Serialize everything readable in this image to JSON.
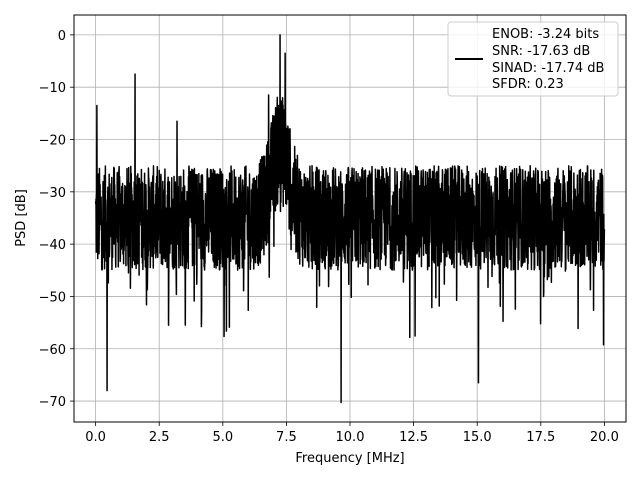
{
  "chart_data": {
    "type": "line",
    "xlabel": "Frequency [MHz]",
    "ylabel": "PSD [dB]",
    "xlim": [
      -0.85,
      20.85
    ],
    "ylim": [
      -74,
      3.8
    ],
    "x_ticks": [
      0.0,
      2.5,
      5.0,
      7.5,
      10.0,
      12.5,
      15.0,
      17.5,
      20.0
    ],
    "x_tick_labels": [
      "0.0",
      "2.5",
      "5.0",
      "7.5",
      "10.0",
      "12.5",
      "15.0",
      "17.5",
      "20.0"
    ],
    "y_ticks": [
      0,
      -10,
      -20,
      -30,
      -40,
      -50,
      -60,
      -70
    ],
    "y_tick_labels": [
      "0",
      "−10",
      "−20",
      "−30",
      "−40",
      "−50",
      "−60",
      "−70"
    ],
    "grid": true,
    "legend_position": "top-right",
    "series": [
      {
        "name": "ENOB: -3.24 bits\nSNR: -17.63 dB\nSINAD: -17.74 dB\nSFDR: 0.23",
        "color": "#000000",
        "x_range": [
          0.0,
          20.0
        ],
        "noise_floor_upper_db": -25,
        "noise_floor_lower_db": -45,
        "spikes": [
          {
            "x": 0.05,
            "y": -13.5
          },
          {
            "x": 0.45,
            "y": -68
          },
          {
            "x": 1.55,
            "y": -7.5
          },
          {
            "x": 3.2,
            "y": -16.5
          },
          {
            "x": 6.8,
            "y": -11.5
          },
          {
            "x": 7.25,
            "y": 0.0
          },
          {
            "x": 7.45,
            "y": -3.5
          },
          {
            "x": 9.65,
            "y": -70.3
          },
          {
            "x": 15.05,
            "y": -66.5
          }
        ]
      }
    ],
    "legend_lines": [
      "ENOB: -3.24 bits",
      "SNR: -17.63 dB",
      "SINAD: -17.74 dB",
      "SFDR: 0.23"
    ]
  }
}
